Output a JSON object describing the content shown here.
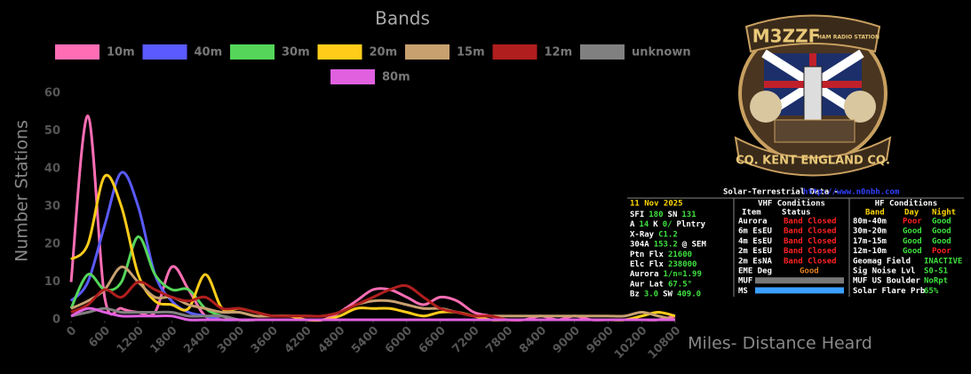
{
  "chart_data": {
    "type": "line",
    "title": "Bands",
    "y_label": "Number Stations",
    "x_label": "Miles- Distance Heard",
    "x": [
      0,
      300,
      600,
      900,
      1200,
      1500,
      1800,
      2100,
      2400,
      2700,
      3000,
      3300,
      3600,
      3900,
      4200,
      4500,
      4800,
      5100,
      5400,
      5700,
      6000,
      6300,
      6600,
      6900,
      7200,
      7500,
      7800,
      8100,
      8400,
      8700,
      9000,
      9300,
      9600,
      9900,
      10200,
      10500,
      10800
    ],
    "xlim": [
      0,
      10800
    ],
    "xticks": [
      0,
      600,
      1200,
      1800,
      2400,
      3000,
      3600,
      4200,
      4800,
      5400,
      6000,
      6600,
      7200,
      7800,
      8400,
      9000,
      9600,
      10200,
      10800
    ],
    "ylim": [
      0,
      60
    ],
    "yticks": [
      0,
      10,
      20,
      30,
      40,
      50,
      60
    ],
    "grid": false,
    "series": [
      {
        "name": "10m",
        "color": "#ff6eb4",
        "values": [
          10,
          54,
          6,
          3,
          2,
          2,
          14,
          8,
          1,
          1,
          0,
          0,
          0,
          0,
          0,
          0,
          2,
          5,
          8,
          8,
          6,
          4,
          6,
          5,
          2,
          1,
          0,
          0,
          1,
          0,
          1,
          0,
          0,
          0,
          0,
          0,
          1
        ]
      },
      {
        "name": "40m",
        "color": "#5a5aff",
        "values": [
          5,
          10,
          25,
          39,
          30,
          12,
          5,
          2,
          1,
          0,
          0,
          0,
          0,
          0,
          0,
          0,
          0,
          0,
          0,
          0,
          0,
          0,
          0,
          0,
          0,
          0,
          0,
          0,
          0,
          0,
          0,
          0,
          0,
          0,
          0,
          0,
          0
        ]
      },
      {
        "name": "30m",
        "color": "#55d55a",
        "values": [
          3,
          12,
          8,
          10,
          22,
          12,
          8,
          8,
          3,
          1,
          0,
          0,
          0,
          0,
          0,
          0,
          0,
          0,
          0,
          0,
          0,
          0,
          0,
          0,
          0,
          0,
          0,
          0,
          0,
          0,
          0,
          0,
          0,
          0,
          0,
          0,
          0
        ]
      },
      {
        "name": "20m",
        "color": "#ffcc1a",
        "values": [
          16,
          20,
          38,
          30,
          12,
          5,
          4,
          3,
          12,
          3,
          3,
          2,
          1,
          1,
          0,
          0,
          1,
          3,
          3,
          3,
          2,
          1,
          2,
          2,
          1,
          0,
          0,
          0,
          0,
          0,
          0,
          0,
          0,
          0,
          1,
          2,
          1
        ]
      },
      {
        "name": "15m",
        "color": "#c8a070",
        "values": [
          3,
          5,
          8,
          14,
          10,
          6,
          6,
          4,
          3,
          2,
          2,
          1,
          1,
          1,
          1,
          1,
          2,
          4,
          5,
          5,
          4,
          3,
          3,
          2,
          1,
          1,
          1,
          1,
          1,
          1,
          1,
          1,
          1,
          1,
          2,
          1,
          0
        ]
      },
      {
        "name": "12m",
        "color": "#b01e1e",
        "values": [
          2,
          4,
          8,
          6,
          10,
          8,
          6,
          5,
          6,
          3,
          3,
          2,
          1,
          1,
          1,
          1,
          2,
          4,
          6,
          8,
          9,
          6,
          3,
          2,
          1,
          1,
          0,
          0,
          0,
          0,
          0,
          0,
          0,
          0,
          0,
          0,
          0
        ]
      },
      {
        "name": "unknown",
        "color": "#808080",
        "values": [
          1,
          2,
          3,
          2,
          2,
          2,
          2,
          1,
          1,
          1,
          0,
          0,
          0,
          0,
          0,
          0,
          0,
          0,
          0,
          0,
          0,
          0,
          0,
          0,
          0,
          0,
          0,
          0,
          0,
          0,
          0,
          0,
          0,
          0,
          0,
          0,
          0
        ]
      },
      {
        "name": "80m",
        "color": "#e060e0",
        "values": [
          1,
          3,
          2,
          1,
          1,
          1,
          1,
          0,
          0,
          0,
          0,
          0,
          0,
          0,
          0,
          0,
          0,
          0,
          0,
          0,
          0,
          0,
          0,
          0,
          0,
          0,
          0,
          0,
          0,
          0,
          0,
          0,
          0,
          0,
          0,
          0,
          0
        ]
      }
    ]
  },
  "logo": {
    "call": "M3ZZF",
    "tag": "HAM RADIO STATION",
    "motto": "CQ. KENT ENGLAND CQ."
  },
  "solar": {
    "title": "Solar-Terrestrial Data - ",
    "url": "http://www.n0nbh.com",
    "date": "11 Nov 2025",
    "left": [
      [
        "SFI",
        "180",
        "SN",
        "131"
      ],
      [
        "A",
        "14",
        "K",
        "0/",
        "Plntry"
      ],
      [
        "X-Ray",
        "C1.2"
      ],
      [
        "304A",
        "153.2",
        "@ SEM"
      ],
      [
        "Ptn Flx",
        "21600"
      ],
      [
        "Elc Flx",
        "238000"
      ],
      [
        "Aurora",
        "1/n=1.99"
      ],
      [
        "Aur Lat",
        "67.5°"
      ],
      [
        "Bz",
        "3.0",
        "SW",
        "409.0"
      ]
    ],
    "vhf": {
      "title": "VHF Conditions",
      "head": [
        "Item",
        "Status"
      ],
      "rows": [
        [
          "Aurora",
          "Band Closed"
        ],
        [
          "6m EsEU",
          "Band Closed"
        ],
        [
          "4m EsEU",
          "Band Closed"
        ],
        [
          "2m EsEU",
          "Band Closed"
        ],
        [
          "2m EsNA",
          "Band Closed"
        ],
        [
          "EME Deg",
          "Good"
        ],
        [
          "MUF"
        ],
        [
          "MS"
        ]
      ]
    },
    "hf": {
      "title": "HF Conditions",
      "head": [
        "Band",
        "Day",
        "Night"
      ],
      "rows": [
        [
          "80m-40m",
          "Poor",
          "Good"
        ],
        [
          "30m-20m",
          "Good",
          "Good"
        ],
        [
          "17m-15m",
          "Good",
          "Good"
        ],
        [
          "12m-10m",
          "Good",
          "Poor"
        ],
        [
          "Geomag Field",
          "INACTIVE"
        ],
        [
          "Sig Noise Lvl",
          "S0-S1"
        ],
        [
          "MUF US Boulder",
          "NoRpt"
        ],
        [
          "Solar Flare Prb",
          "65%"
        ]
      ]
    }
  }
}
